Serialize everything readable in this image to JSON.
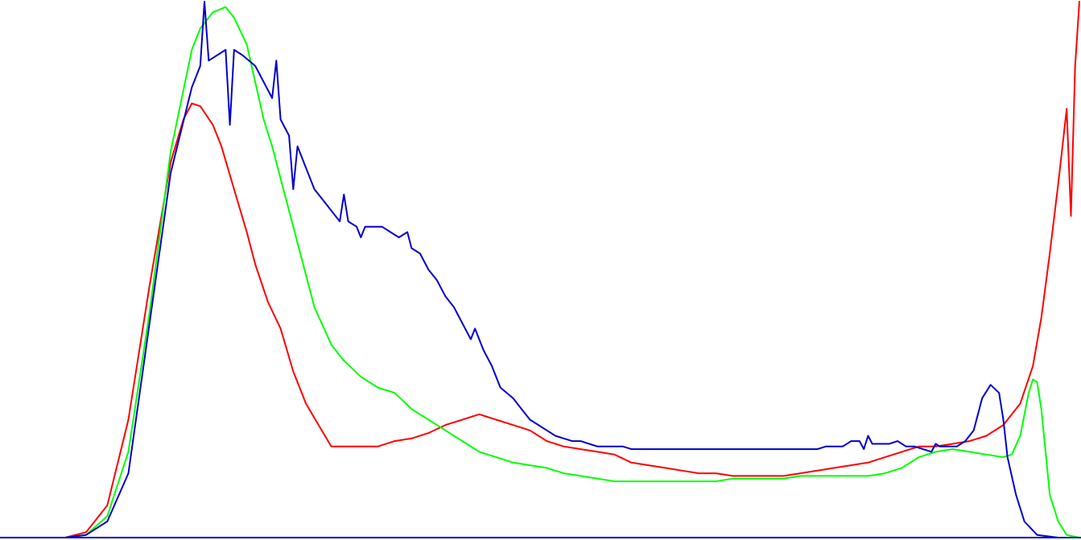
{
  "chart_data": {
    "type": "line",
    "title": "",
    "xlabel": "",
    "ylabel": "",
    "xlim": [
      0,
      255
    ],
    "ylim": [
      0,
      100
    ],
    "grid": false,
    "legend": "none",
    "series": [
      {
        "name": "red",
        "color": "#ff0000",
        "points": [
          [
            15,
            0
          ],
          [
            20,
            1
          ],
          [
            25,
            6
          ],
          [
            30,
            22
          ],
          [
            35,
            47
          ],
          [
            40,
            70
          ],
          [
            43,
            78
          ],
          [
            45,
            81
          ],
          [
            47,
            80.5
          ],
          [
            50,
            77
          ],
          [
            52,
            73
          ],
          [
            55,
            65
          ],
          [
            58,
            57
          ],
          [
            60,
            51
          ],
          [
            63,
            44
          ],
          [
            66,
            39
          ],
          [
            69,
            31
          ],
          [
            72,
            25
          ],
          [
            75,
            21
          ],
          [
            78,
            17
          ],
          [
            81,
            17
          ],
          [
            85,
            17
          ],
          [
            89,
            17
          ],
          [
            93,
            18
          ],
          [
            97,
            18.5
          ],
          [
            101,
            19.5
          ],
          [
            105,
            21
          ],
          [
            109,
            22
          ],
          [
            113,
            23
          ],
          [
            117,
            22
          ],
          [
            121,
            21
          ],
          [
            125,
            20
          ],
          [
            129,
            18
          ],
          [
            133,
            17
          ],
          [
            137,
            16.5
          ],
          [
            141,
            16
          ],
          [
            145,
            15.5
          ],
          [
            149,
            14
          ],
          [
            153,
            13.5
          ],
          [
            157,
            13
          ],
          [
            161,
            12.5
          ],
          [
            165,
            12
          ],
          [
            169,
            12
          ],
          [
            173,
            11.5
          ],
          [
            177,
            11.5
          ],
          [
            181,
            11.5
          ],
          [
            185,
            11.5
          ],
          [
            189,
            12
          ],
          [
            193,
            12.5
          ],
          [
            197,
            13
          ],
          [
            201,
            13.5
          ],
          [
            205,
            14
          ],
          [
            209,
            15
          ],
          [
            213,
            16
          ],
          [
            217,
            17
          ],
          [
            221,
            17
          ],
          [
            225,
            17.5
          ],
          [
            229,
            18
          ],
          [
            233,
            19
          ],
          [
            237,
            21
          ],
          [
            241,
            25
          ],
          [
            244,
            32
          ],
          [
            246,
            41
          ],
          [
            248,
            53
          ],
          [
            250,
            66
          ],
          [
            251,
            73
          ],
          [
            252,
            80
          ],
          [
            253,
            60
          ],
          [
            254,
            88
          ],
          [
            255,
            100
          ]
        ]
      },
      {
        "name": "green",
        "color": "#00ff00",
        "points": [
          [
            15,
            0
          ],
          [
            20,
            0.5
          ],
          [
            25,
            4
          ],
          [
            30,
            16
          ],
          [
            35,
            42
          ],
          [
            40,
            72
          ],
          [
            45,
            91
          ],
          [
            47,
            95
          ],
          [
            50,
            98
          ],
          [
            53,
            99
          ],
          [
            55,
            97
          ],
          [
            58,
            92
          ],
          [
            60,
            85
          ],
          [
            62,
            78
          ],
          [
            64,
            73
          ],
          [
            66,
            67
          ],
          [
            70,
            55
          ],
          [
            74,
            43
          ],
          [
            78,
            36
          ],
          [
            81,
            33
          ],
          [
            85,
            30
          ],
          [
            89,
            28
          ],
          [
            93,
            27
          ],
          [
            97,
            24
          ],
          [
            101,
            22
          ],
          [
            105,
            20
          ],
          [
            109,
            18
          ],
          [
            113,
            16
          ],
          [
            117,
            15
          ],
          [
            121,
            14
          ],
          [
            125,
            13.5
          ],
          [
            129,
            13
          ],
          [
            133,
            12
          ],
          [
            137,
            11.5
          ],
          [
            141,
            11
          ],
          [
            145,
            10.5
          ],
          [
            149,
            10.5
          ],
          [
            153,
            10.5
          ],
          [
            157,
            10.5
          ],
          [
            161,
            10.5
          ],
          [
            165,
            10.5
          ],
          [
            169,
            10.5
          ],
          [
            173,
            11
          ],
          [
            177,
            11
          ],
          [
            181,
            11
          ],
          [
            185,
            11
          ],
          [
            189,
            11.5
          ],
          [
            193,
            11.5
          ],
          [
            197,
            11.5
          ],
          [
            201,
            11.5
          ],
          [
            205,
            11.5
          ],
          [
            209,
            12
          ],
          [
            213,
            13
          ],
          [
            217,
            15
          ],
          [
            221,
            16
          ],
          [
            225,
            16.5
          ],
          [
            229,
            16
          ],
          [
            233,
            15.5
          ],
          [
            237,
            15
          ],
          [
            239,
            15.5
          ],
          [
            241,
            19
          ],
          [
            243,
            27
          ],
          [
            244,
            29.5
          ],
          [
            245,
            29
          ],
          [
            246,
            24
          ],
          [
            247,
            16
          ],
          [
            248,
            8
          ],
          [
            250,
            3
          ],
          [
            252,
            0.5
          ],
          [
            255,
            0
          ]
        ]
      },
      {
        "name": "blue",
        "color": "#0000cc",
        "points": [
          [
            15,
            0
          ],
          [
            20,
            0.5
          ],
          [
            25,
            3
          ],
          [
            30,
            12
          ],
          [
            35,
            40
          ],
          [
            40,
            68
          ],
          [
            45,
            84
          ],
          [
            47,
            88
          ],
          [
            48,
            100
          ],
          [
            49,
            89
          ],
          [
            51,
            90
          ],
          [
            53,
            91
          ],
          [
            54,
            77
          ],
          [
            55,
            91
          ],
          [
            57,
            90
          ],
          [
            60,
            88
          ],
          [
            62,
            85
          ],
          [
            64,
            82
          ],
          [
            65,
            89
          ],
          [
            66,
            78
          ],
          [
            68,
            75
          ],
          [
            69,
            65
          ],
          [
            70,
            73
          ],
          [
            72,
            69
          ],
          [
            74,
            65
          ],
          [
            76,
            63
          ],
          [
            78,
            61
          ],
          [
            80,
            59
          ],
          [
            81,
            64
          ],
          [
            82,
            59
          ],
          [
            84,
            58
          ],
          [
            85,
            56
          ],
          [
            86,
            58
          ],
          [
            88,
            58
          ],
          [
            90,
            58
          ],
          [
            92,
            57
          ],
          [
            94,
            56
          ],
          [
            96,
            57
          ],
          [
            97,
            54
          ],
          [
            99,
            53
          ],
          [
            101,
            50
          ],
          [
            103,
            48
          ],
          [
            105,
            45
          ],
          [
            107,
            43
          ],
          [
            109,
            40
          ],
          [
            111,
            37
          ],
          [
            112,
            39
          ],
          [
            114,
            35
          ],
          [
            116,
            32
          ],
          [
            118,
            28
          ],
          [
            121,
            26
          ],
          [
            123,
            24
          ],
          [
            125,
            22
          ],
          [
            127,
            21
          ],
          [
            129,
            20
          ],
          [
            131,
            19
          ],
          [
            133,
            18.5
          ],
          [
            135,
            18
          ],
          [
            137,
            18
          ],
          [
            139,
            17.5
          ],
          [
            141,
            17
          ],
          [
            143,
            17
          ],
          [
            145,
            17
          ],
          [
            147,
            17
          ],
          [
            149,
            16.5
          ],
          [
            151,
            16.5
          ],
          [
            153,
            16.5
          ],
          [
            155,
            16.5
          ],
          [
            157,
            16.5
          ],
          [
            159,
            16.5
          ],
          [
            161,
            16.5
          ],
          [
            163,
            16.5
          ],
          [
            165,
            16.5
          ],
          [
            167,
            16.5
          ],
          [
            169,
            16.5
          ],
          [
            171,
            16.5
          ],
          [
            173,
            16.5
          ],
          [
            175,
            16.5
          ],
          [
            177,
            16.5
          ],
          [
            179,
            16.5
          ],
          [
            181,
            16.5
          ],
          [
            183,
            16.5
          ],
          [
            185,
            16.5
          ],
          [
            187,
            16.5
          ],
          [
            189,
            16.5
          ],
          [
            191,
            16.5
          ],
          [
            193,
            16.5
          ],
          [
            195,
            17
          ],
          [
            197,
            17
          ],
          [
            199,
            17
          ],
          [
            201,
            18
          ],
          [
            203,
            18
          ],
          [
            204,
            16.5
          ],
          [
            205,
            19
          ],
          [
            206,
            17.5
          ],
          [
            208,
            17.5
          ],
          [
            210,
            17.5
          ],
          [
            212,
            18
          ],
          [
            214,
            17
          ],
          [
            216,
            17
          ],
          [
            218,
            16.5
          ],
          [
            220,
            16
          ],
          [
            221,
            17.5
          ],
          [
            222,
            17
          ],
          [
            224,
            17
          ],
          [
            226,
            17
          ],
          [
            228,
            18
          ],
          [
            230,
            20
          ],
          [
            232,
            26
          ],
          [
            234,
            28.5
          ],
          [
            236,
            27
          ],
          [
            237,
            22
          ],
          [
            238,
            15
          ],
          [
            240,
            8
          ],
          [
            242,
            3
          ],
          [
            245,
            0.5
          ],
          [
            250,
            0
          ],
          [
            255,
            0
          ]
        ]
      }
    ]
  }
}
